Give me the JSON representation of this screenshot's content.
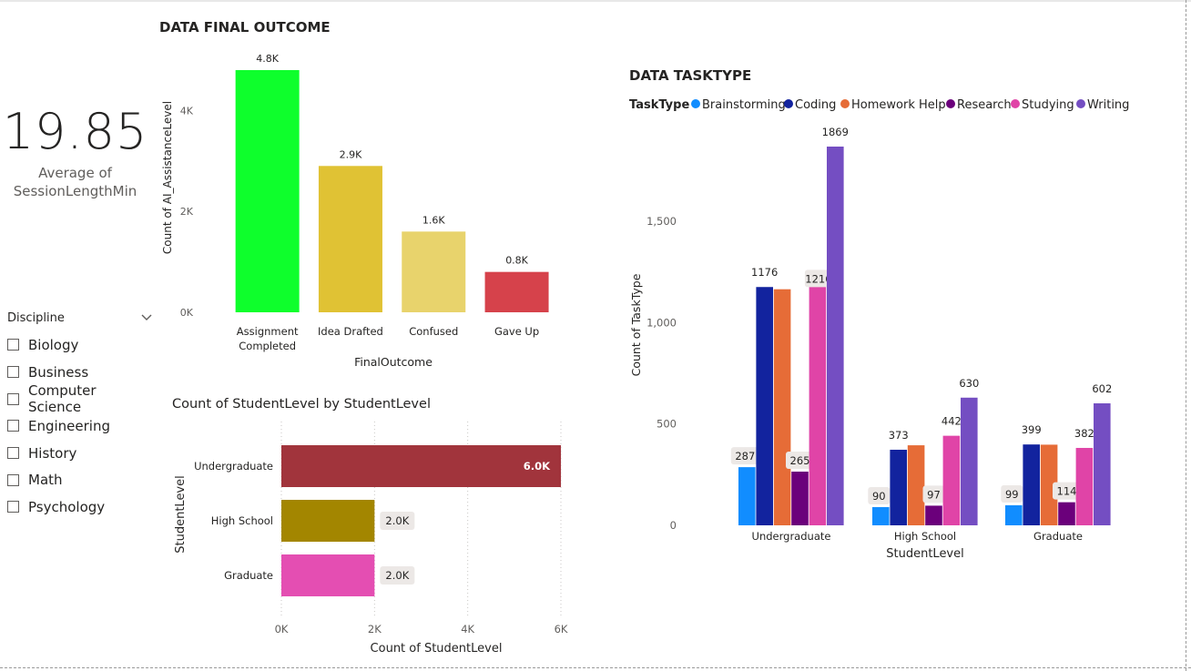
{
  "card": {
    "value": "19.85",
    "label_line1": "Average of",
    "label_line2": "SessionLengthMin"
  },
  "slicer": {
    "title": "Discipline",
    "items": [
      "Biology",
      "Business",
      "Computer Science",
      "Engineering",
      "History",
      "Math",
      "Psychology"
    ]
  },
  "colors": {
    "brainstorming": "#118DFF",
    "coding": "#12239E",
    "homework_help": "#E66C37",
    "research": "#6B007B",
    "studying": "#E044A7",
    "writing": "#744EC2",
    "assignment_completed": "#0EFF2C",
    "idea_drafted": "#E0C234",
    "confused": "#E8D36C",
    "gave_up": "#D6424B",
    "undergraduate": "#A1343C",
    "high_school": "#A38600",
    "graduate": "#E44EB2"
  },
  "chart_data": [
    {
      "type": "bar",
      "title": "DATA FINAL OUTCOME",
      "xlabel": "FinalOutcome",
      "ylabel": "Count of AI_AssistanceLevel",
      "categories": [
        [
          "Assignment",
          "Completed"
        ],
        [
          "Idea Drafted"
        ],
        [
          "Confused"
        ],
        [
          "Gave Up"
        ]
      ],
      "values": [
        4800,
        2900,
        1600,
        800
      ],
      "data_labels": [
        "4.8K",
        "2.9K",
        "1.6K",
        "0.8K"
      ],
      "ylim": [
        0,
        4800
      ],
      "yticks": [
        0,
        2000,
        4000
      ],
      "ytick_labels": [
        "0K",
        "2K",
        "4K"
      ],
      "grid": false
    },
    {
      "type": "bar",
      "orientation": "horizontal",
      "title": "Count of StudentLevel by StudentLevel",
      "xlabel": "Count of StudentLevel",
      "ylabel": "StudentLevel",
      "categories": [
        "Undergraduate",
        "High School",
        "Graduate"
      ],
      "values": [
        6000,
        2000,
        2000
      ],
      "data_labels": [
        "6.0K",
        "2.0K",
        "2.0K"
      ],
      "xlim": [
        0,
        6000
      ],
      "xticks": [
        0,
        2000,
        4000,
        6000
      ],
      "xtick_labels": [
        "0K",
        "2K",
        "4K",
        "6K"
      ],
      "grid": true
    },
    {
      "type": "bar",
      "title": "DATA TASKTYPE",
      "xlabel": "StudentLevel",
      "ylabel": "Count of TaskType",
      "legend_title": "TaskType",
      "legend_position": "top-left",
      "categories": [
        "Undergraduate",
        "High School",
        "Graduate"
      ],
      "series": [
        {
          "name": "Brainstorming",
          "values": [
            287,
            90,
            99
          ],
          "labels": [
            "287",
            "90",
            "99"
          ]
        },
        {
          "name": "Coding",
          "values": [
            1176,
            373,
            399
          ],
          "labels": [
            "1176",
            "373",
            "399"
          ]
        },
        {
          "name": "Homework Help",
          "values": [
            1165,
            395,
            398
          ],
          "labels": [
            "",
            "",
            ""
          ]
        },
        {
          "name": "Research",
          "values": [
            265,
            97,
            114
          ],
          "labels": [
            "265",
            "97",
            "114"
          ]
        },
        {
          "name": "Studying",
          "values": [
            1216,
            442,
            382
          ],
          "labels": [
            "1216",
            "442",
            "382"
          ]
        },
        {
          "name": "Writing",
          "values": [
            1869,
            630,
            602
          ],
          "labels": [
            "1869",
            "630",
            "602"
          ]
        }
      ],
      "ylim": [
        0,
        1869
      ],
      "yticks": [
        0,
        500,
        1000,
        1500
      ],
      "ytick_labels": [
        "0",
        "500",
        "1,000",
        "1,500"
      ],
      "grid": false
    }
  ]
}
